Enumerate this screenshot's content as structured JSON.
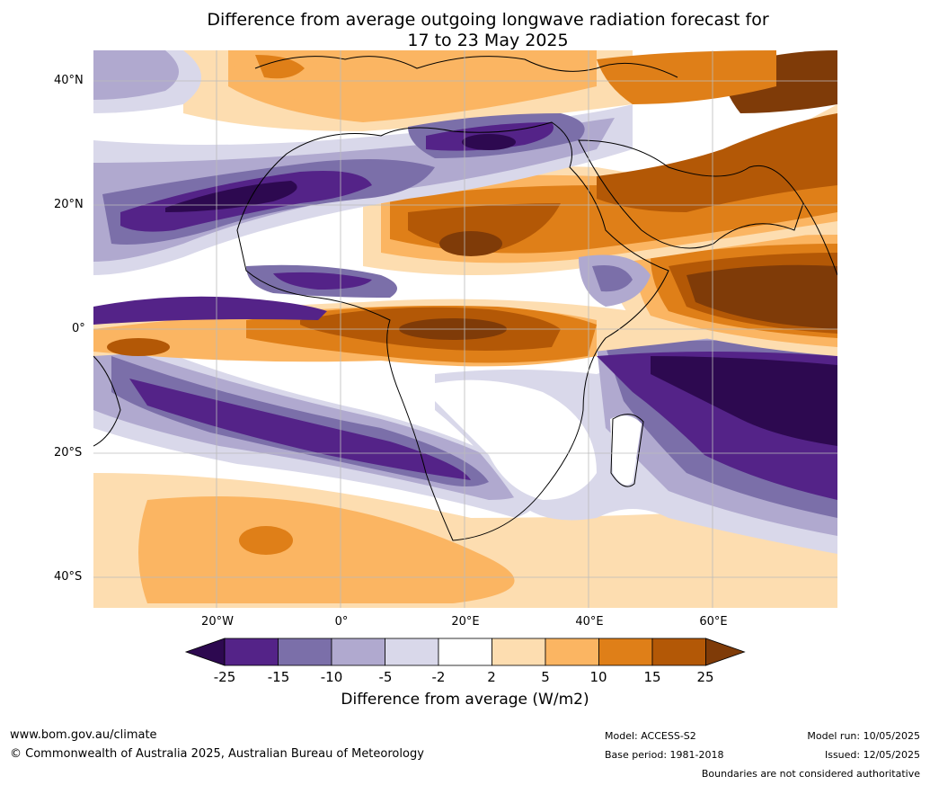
{
  "title": {
    "line1": "Difference from average outgoing longwave radiation forecast for",
    "line2": "17 to 23 May 2025"
  },
  "axes": {
    "lat_labels": [
      "40°N",
      "20°N",
      "0°",
      "20°S",
      "40°S"
    ],
    "lon_labels": [
      "20°W",
      "0°",
      "20°E",
      "40°E",
      "60°E"
    ]
  },
  "colorbar": {
    "title": "Difference from average (W/m2)",
    "tick_labels": [
      "-25",
      "-15",
      "-10",
      "-5",
      "-2",
      "2",
      "5",
      "10",
      "15",
      "25"
    ],
    "colors": [
      "#2d0950",
      "#542388",
      "#7b6fa9",
      "#b0a9cf",
      "#d9d8ea",
      "#ffffff",
      "#fdddb0",
      "#fbb562",
      "#df7f18",
      "#b35806",
      "#7f3b08"
    ]
  },
  "footer": {
    "url": "www.bom.gov.au/climate",
    "copyright": "© Commonwealth of Australia 2025, Australian Bureau of Meteorology",
    "model": "Model: ACCESS-S2",
    "base_period": "Base period: 1981-2018",
    "model_run": "Model run: 10/05/2025",
    "issued": "Issued: 12/05/2025",
    "disclaimer": "Boundaries are not considered authoritative"
  }
}
